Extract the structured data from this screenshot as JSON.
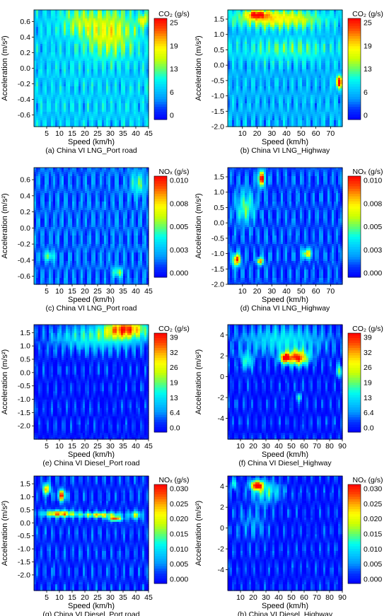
{
  "colors": {
    "scale": [
      "#0000ff",
      "#0033ff",
      "#0099ff",
      "#00ccff",
      "#00ffee",
      "#66ff66",
      "#ccff00",
      "#ffff00",
      "#ffaa00",
      "#ff4400",
      "#ff0000"
    ],
    "contour_line": "#1a1a1a"
  },
  "chart_data": [
    {
      "id": "a",
      "type": "heatmap",
      "caption": "(a) China VI  LNG_Port road",
      "xlabel": "Speed (km/h)",
      "ylabel": "Acceleration (m/s²)",
      "colorbar_title": "CO₂ (g/s)",
      "xlim": [
        0,
        45
      ],
      "ylim": [
        -0.75,
        0.75
      ],
      "x_ticks": [
        "5",
        "10",
        "15",
        "20",
        "25",
        "30",
        "35",
        "40",
        "45"
      ],
      "x_tick_values": [
        5,
        10,
        15,
        20,
        25,
        30,
        35,
        40,
        45
      ],
      "y_ticks": [
        "-0.6",
        "-0.4",
        "-0.2",
        "0.0",
        "0.2",
        "0.4",
        "0.6"
      ],
      "y_tick_values": [
        -0.6,
        -0.4,
        -0.2,
        0.0,
        0.2,
        0.4,
        0.6
      ],
      "colorbar_ticks": [
        "25",
        "19",
        "13",
        "6",
        "0"
      ],
      "colorbar_range": [
        0,
        25
      ],
      "base_level": 0.3,
      "hotspots": [
        {
          "x": 30,
          "y": 0.45,
          "sx": 10,
          "sy": 0.3,
          "v": 0.35
        },
        {
          "x": 18,
          "y": 0.6,
          "sx": 8,
          "sy": 0.2,
          "v": 0.2
        },
        {
          "x": 43,
          "y": 0.62,
          "sx": 2,
          "sy": 0.08,
          "v": 0.35
        }
      ]
    },
    {
      "id": "b",
      "type": "heatmap",
      "caption": "(b) China VI  LNG_Highway",
      "xlabel": "Speed (km/h)",
      "ylabel": "Acceleration (m/s²)",
      "colorbar_title": "CO₂ (g/s)",
      "xlim": [
        0,
        78
      ],
      "ylim": [
        -2.0,
        1.8
      ],
      "x_ticks": [
        "10",
        "20",
        "30",
        "40",
        "50",
        "60",
        "70"
      ],
      "x_tick_values": [
        10,
        20,
        30,
        40,
        50,
        60,
        70
      ],
      "y_ticks": [
        "-2.0",
        "-1.5",
        "-1.0",
        "-0.5",
        "0.0",
        "0.5",
        "1.0",
        "1.5"
      ],
      "y_tick_values": [
        -2.0,
        -1.5,
        -1.0,
        -0.5,
        0.0,
        0.5,
        1.0,
        1.5
      ],
      "colorbar_ticks": [
        "25",
        "19",
        "13",
        "6",
        "0"
      ],
      "colorbar_range": [
        0,
        25
      ],
      "base_level": 0.25,
      "hotspots": [
        {
          "x": 35,
          "y": 1.5,
          "sx": 30,
          "sy": 0.3,
          "v": 0.45
        },
        {
          "x": 20,
          "y": 1.65,
          "sx": 8,
          "sy": 0.15,
          "v": 0.5
        },
        {
          "x": 76,
          "y": -0.55,
          "sx": 2.5,
          "sy": 0.2,
          "v": 0.75
        },
        {
          "x": 40,
          "y": 0.5,
          "sx": 35,
          "sy": 0.4,
          "v": 0.2
        }
      ]
    },
    {
      "id": "c",
      "type": "heatmap",
      "caption": "(c) China VI  LNG_Port road",
      "xlabel": "Speed (km/h)",
      "ylabel": "Acceleration (m/s²)",
      "colorbar_title": "NOₓ (g/s)",
      "xlim": [
        0,
        45
      ],
      "ylim": [
        -0.7,
        0.75
      ],
      "x_ticks": [
        "5",
        "10",
        "15",
        "20",
        "25",
        "30",
        "35",
        "40",
        "45"
      ],
      "x_tick_values": [
        5,
        10,
        15,
        20,
        25,
        30,
        35,
        40,
        45
      ],
      "y_ticks": [
        "-0.6",
        "-0.4",
        "-0.2",
        "0.0",
        "0.2",
        "0.4",
        "0.6"
      ],
      "y_tick_values": [
        -0.6,
        -0.4,
        -0.2,
        0.0,
        0.2,
        0.4,
        0.6
      ],
      "colorbar_ticks": [
        "0.010",
        "0.008",
        "0.005",
        "0.003",
        "0.000"
      ],
      "colorbar_range": [
        0,
        0.01
      ],
      "base_level": 0.15,
      "hotspots": [
        {
          "x": 33,
          "y": -0.55,
          "sx": 2,
          "sy": 0.06,
          "v": 0.4
        },
        {
          "x": 6,
          "y": -0.35,
          "sx": 2,
          "sy": 0.06,
          "v": 0.35
        },
        {
          "x": 41,
          "y": 0.55,
          "sx": 3,
          "sy": 0.15,
          "v": 0.3
        }
      ]
    },
    {
      "id": "d",
      "type": "heatmap",
      "caption": "(d) China VI LNG_Highway",
      "xlabel": "Speed (km/h)",
      "ylabel": "Acceleration (m/s²)",
      "colorbar_title": "NOₓ (g/s)",
      "xlim": [
        0,
        78
      ],
      "ylim": [
        -2.0,
        1.8
      ],
      "x_ticks": [
        "10",
        "20",
        "30",
        "40",
        "50",
        "60",
        "70"
      ],
      "x_tick_values": [
        10,
        20,
        30,
        40,
        50,
        60,
        70
      ],
      "y_ticks": [
        "-2.0",
        "-1.5",
        "-1.0",
        "-0.5",
        "0.0",
        "0.5",
        "1.0",
        "1.5"
      ],
      "y_tick_values": [
        -2.0,
        -1.5,
        -1.0,
        -0.5,
        0.0,
        0.5,
        1.0,
        1.5
      ],
      "colorbar_ticks": [
        "0.010",
        "0.008",
        "0.005",
        "0.003",
        "0.000"
      ],
      "colorbar_range": [
        0,
        0.01
      ],
      "base_level": 0.12,
      "hotspots": [
        {
          "x": 23,
          "y": 1.45,
          "sx": 2.5,
          "sy": 0.25,
          "v": 0.85
        },
        {
          "x": 6,
          "y": -1.2,
          "sx": 2.5,
          "sy": 0.2,
          "v": 0.85
        },
        {
          "x": 22,
          "y": -1.25,
          "sx": 2,
          "sy": 0.12,
          "v": 0.75
        },
        {
          "x": 54,
          "y": -1.0,
          "sx": 3,
          "sy": 0.15,
          "v": 0.6
        },
        {
          "x": 12,
          "y": 0.5,
          "sx": 6,
          "sy": 0.5,
          "v": 0.35
        }
      ]
    },
    {
      "id": "e",
      "type": "heatmap",
      "caption": "(e) China VI  Diesel_Port road",
      "xlabel": "Speed (km/h)",
      "ylabel": "Acceleration (m/s²)",
      "colorbar_title": "CO₂ (g/s)",
      "xlim": [
        0,
        45
      ],
      "ylim": [
        -2.5,
        1.8
      ],
      "x_ticks": [
        "5",
        "10",
        "15",
        "20",
        "25",
        "30",
        "35",
        "40",
        "45"
      ],
      "x_tick_values": [
        5,
        10,
        15,
        20,
        25,
        30,
        35,
        40,
        45
      ],
      "y_ticks": [
        "-2.0",
        "-1.5",
        "-1.0",
        "-0.5",
        "0.0",
        "0.5",
        "1.0",
        "1.5"
      ],
      "y_tick_values": [
        -2.0,
        -1.5,
        -1.0,
        -0.5,
        0.0,
        0.5,
        1.0,
        1.5
      ],
      "colorbar_ticks": [
        "39",
        "32",
        "26",
        "19",
        "13",
        "6.4",
        "0.0"
      ],
      "colorbar_range": [
        0,
        39
      ],
      "base_level": 0.05,
      "hotspots": [
        {
          "x": 36,
          "y": 1.65,
          "sx": 8,
          "sy": 0.35,
          "v": 0.75
        },
        {
          "x": 25,
          "y": 1.3,
          "sx": 18,
          "sy": 0.5,
          "v": 0.35
        }
      ]
    },
    {
      "id": "f",
      "type": "heatmap",
      "caption": "(f) China VI  Diesel_Highway",
      "xlabel": "Speed (km/h)",
      "ylabel": "Acceleration (m/s²)",
      "colorbar_title": "CO₂ (g/s)",
      "xlim": [
        0,
        90
      ],
      "ylim": [
        -6,
        5
      ],
      "x_ticks": [
        "10",
        "20",
        "30",
        "40",
        "50",
        "60",
        "70",
        "80",
        "90"
      ],
      "x_tick_values": [
        10,
        20,
        30,
        40,
        50,
        60,
        70,
        80,
        90
      ],
      "y_ticks": [
        "-4",
        "-2",
        "0",
        "2",
        "4"
      ],
      "y_tick_values": [
        -4,
        -2,
        0,
        2,
        4
      ],
      "colorbar_ticks": [
        "39",
        "32",
        "26",
        "19",
        "13",
        "6.4",
        "0.0"
      ],
      "colorbar_range": [
        0,
        39
      ],
      "base_level": 0.05,
      "hotspots": [
        {
          "x": 55,
          "y": 1.8,
          "sx": 8,
          "sy": 0.7,
          "v": 0.85
        },
        {
          "x": 45,
          "y": 1.8,
          "sx": 4,
          "sy": 0.5,
          "v": 0.85
        },
        {
          "x": 45,
          "y": 3.5,
          "sx": 35,
          "sy": 1.5,
          "v": 0.3
        },
        {
          "x": 15,
          "y": 1.5,
          "sx": 5,
          "sy": 0.8,
          "v": 0.35
        },
        {
          "x": 56,
          "y": -2.0,
          "sx": 2,
          "sy": 0.4,
          "v": 0.35
        },
        {
          "x": 88,
          "y": 0.5,
          "sx": 3,
          "sy": 0.6,
          "v": 0.4
        }
      ]
    },
    {
      "id": "g",
      "type": "heatmap",
      "caption": "(g) China VI  Diesel_Port road",
      "xlabel": "Speed (km/h)",
      "ylabel": "Acceleration (m/s²)",
      "colorbar_title": "NOₓ (g/s)",
      "xlim": [
        0,
        45
      ],
      "ylim": [
        -2.6,
        1.8
      ],
      "x_ticks": [
        "5",
        "10",
        "15",
        "20",
        "25",
        "30",
        "35",
        "40",
        "45"
      ],
      "x_tick_values": [
        5,
        10,
        15,
        20,
        25,
        30,
        35,
        40,
        45
      ],
      "y_ticks": [
        "-2.0",
        "-1.5",
        "-1.0",
        "-0.5",
        "0.0",
        "0.5",
        "1.0",
        "1.5"
      ],
      "y_tick_values": [
        -2.0,
        -1.5,
        -1.0,
        -0.5,
        0.0,
        0.5,
        1.0,
        1.5
      ],
      "colorbar_ticks": [
        "0.030",
        "0.025",
        "0.020",
        "0.015",
        "0.010",
        "0.005",
        "0.000"
      ],
      "colorbar_range": [
        0,
        0.03
      ],
      "base_level": 0.08,
      "hotspots": [
        {
          "x": 5,
          "y": 1.3,
          "sx": 1.5,
          "sy": 0.2,
          "v": 0.75
        },
        {
          "x": 11,
          "y": 1.05,
          "sx": 1.5,
          "sy": 0.2,
          "v": 0.85
        },
        {
          "x": 10,
          "y": 0.35,
          "sx": 6,
          "sy": 0.12,
          "v": 0.75
        },
        {
          "x": 26,
          "y": 0.3,
          "sx": 8,
          "sy": 0.1,
          "v": 0.6
        },
        {
          "x": 32,
          "y": 0.15,
          "sx": 2.5,
          "sy": 0.08,
          "v": 0.85
        },
        {
          "x": 40,
          "y": 0.3,
          "sx": 2,
          "sy": 0.15,
          "v": 0.5
        }
      ]
    },
    {
      "id": "h",
      "type": "heatmap",
      "caption": "(h) China VI  Diesel_Highway",
      "xlabel": "Speed (km/h)",
      "ylabel": "Acceleration (m/s²)",
      "colorbar_title": "NOₓ (g/s)",
      "xlim": [
        0,
        90
      ],
      "ylim": [
        -6,
        5
      ],
      "x_ticks": [
        "10",
        "20",
        "30",
        "40",
        "50",
        "60",
        "70",
        "80",
        "90"
      ],
      "x_tick_values": [
        10,
        20,
        30,
        40,
        50,
        60,
        70,
        80,
        90
      ],
      "y_ticks": [
        "-4",
        "-2",
        "0",
        "2",
        "4"
      ],
      "y_tick_values": [
        -4,
        -2,
        0,
        2,
        4
      ],
      "colorbar_ticks": [
        "0.030",
        "0.025",
        "0.020",
        "0.015",
        "0.010",
        "0.005",
        "0.000"
      ],
      "colorbar_range": [
        0,
        0.03
      ],
      "base_level": 0.05,
      "hotspots": [
        {
          "x": 23,
          "y": 4.1,
          "sx": 5,
          "sy": 0.45,
          "v": 0.9
        },
        {
          "x": 30,
          "y": 3.5,
          "sx": 12,
          "sy": 1.0,
          "v": 0.35
        },
        {
          "x": 5,
          "y": 4.2,
          "sx": 2,
          "sy": 0.5,
          "v": 0.4
        },
        {
          "x": 20,
          "y": 0.5,
          "sx": 12,
          "sy": 1.5,
          "v": 0.15
        }
      ]
    }
  ]
}
